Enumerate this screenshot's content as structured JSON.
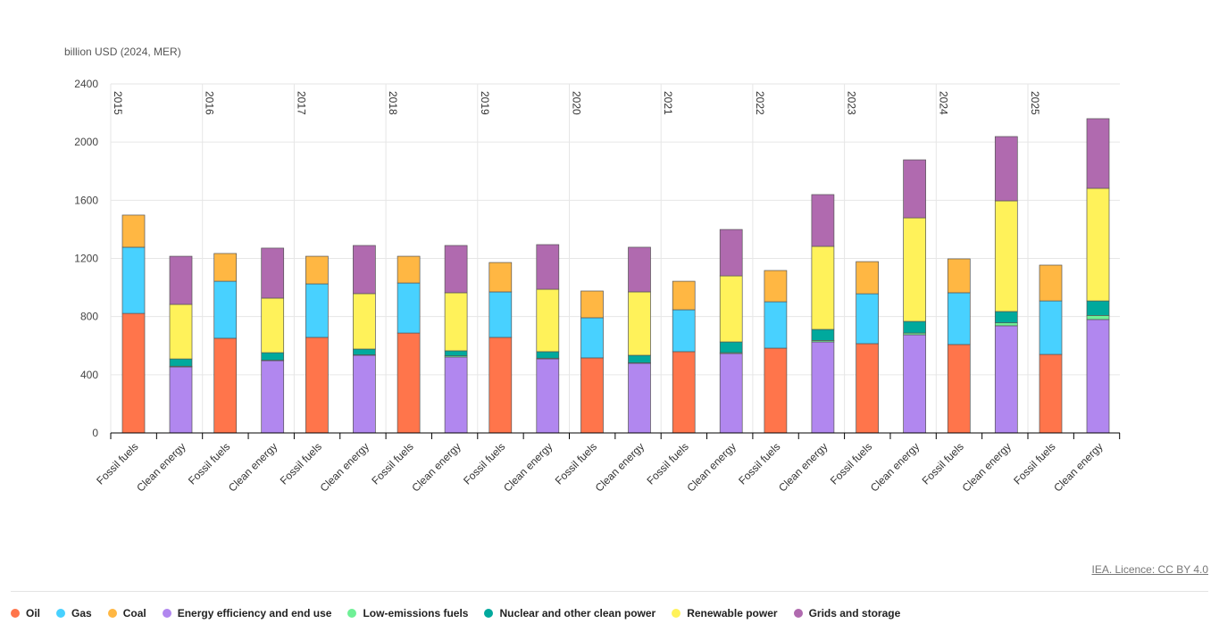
{
  "chart_data": {
    "type": "bar",
    "stacked": true,
    "ylabel": "billion USD (2024, MER)",
    "ylim": [
      0,
      2400
    ],
    "yticks": [
      0,
      400,
      800,
      1200,
      1600,
      2000,
      2400
    ],
    "grid": true,
    "legend": "bottom",
    "years": [
      "2015",
      "2016",
      "2017",
      "2018",
      "2019",
      "2020",
      "2021",
      "2022",
      "2023",
      "2024",
      "2025"
    ],
    "groups": [
      "Fossil fuels",
      "Clean energy"
    ],
    "series": [
      {
        "name": "Oil",
        "color": "#ff754b",
        "group": "Fossil fuels",
        "values": [
          822,
          651,
          657,
          687,
          657,
          516,
          559,
          583,
          614,
          608,
          540
        ]
      },
      {
        "name": "Gas",
        "color": "#48d1ff",
        "group": "Fossil fuels",
        "values": [
          455,
          392,
          368,
          344,
          313,
          276,
          288,
          319,
          343,
          356,
          368
        ]
      },
      {
        "name": "Coal",
        "color": "#ffb743",
        "group": "Fossil fuels",
        "values": [
          221,
          191,
          190,
          184,
          202,
          184,
          196,
          215,
          221,
          233,
          246
        ]
      },
      {
        "name": "Energy efficiency and end use",
        "color": "#b187ef",
        "group": "Clean energy",
        "values": [
          454,
          497,
          534,
          522,
          509,
          479,
          546,
          626,
          675,
          737,
          780
        ]
      },
      {
        "name": "Low-emissions fuels",
        "color": "#6ff096",
        "group": "Clean energy",
        "values": [
          5,
          3,
          3,
          8,
          5,
          3,
          6,
          10,
          12,
          20,
          28
        ]
      },
      {
        "name": "Nuclear and other clean power",
        "color": "#00a99d",
        "group": "Clean energy",
        "values": [
          50,
          52,
          40,
          35,
          45,
          52,
          74,
          76,
          80,
          78,
          100
        ]
      },
      {
        "name": "Renewable power",
        "color": "#fff25a",
        "group": "Clean energy",
        "values": [
          375,
          375,
          381,
          399,
          429,
          436,
          454,
          571,
          712,
          761,
          774
        ]
      },
      {
        "name": "Grids and storage",
        "color": "#b06aaf",
        "group": "Clean energy",
        "values": [
          331,
          344,
          331,
          325,
          307,
          307,
          319,
          356,
          399,
          442,
          479
        ]
      }
    ]
  },
  "licence": "IEA. Licence: CC BY 4.0"
}
